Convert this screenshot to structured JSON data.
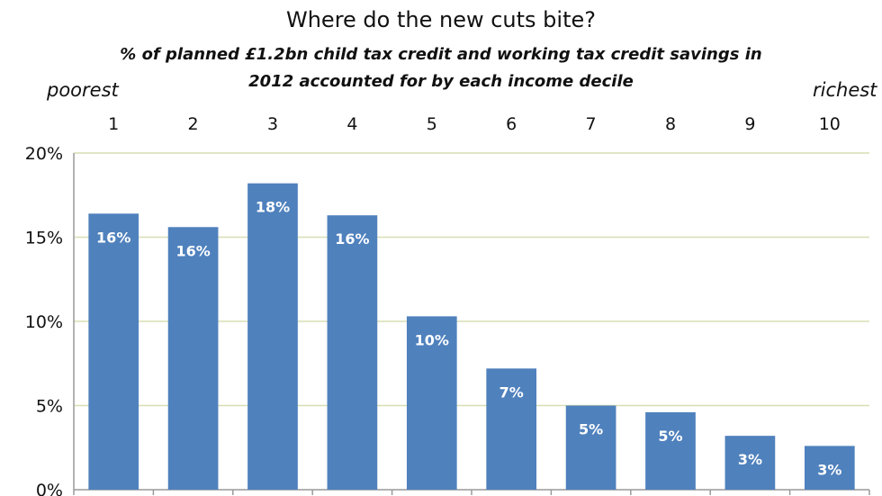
{
  "chart_data": {
    "type": "bar",
    "title": "Where do the new cuts bite?",
    "subtitle_line1": "% of planned £1.2bn child tax credit and working tax credit savings in",
    "subtitle_line2": "2012 accounted for by each income decile",
    "left_end_label": "poorest",
    "right_end_label": "richest",
    "categories": [
      "1",
      "2",
      "3",
      "4",
      "5",
      "6",
      "7",
      "8",
      "9",
      "10"
    ],
    "values": [
      16.4,
      15.6,
      18.2,
      16.3,
      10.3,
      7.2,
      5.0,
      4.6,
      3.2,
      2.6
    ],
    "data_labels": [
      "16%",
      "16%",
      "18%",
      "16%",
      "10%",
      "7%",
      "5%",
      "5%",
      "3%",
      "3%"
    ],
    "ylim": [
      0,
      20
    ],
    "yticks": [
      0,
      5,
      10,
      15,
      20
    ],
    "ytick_labels": [
      "0%",
      "5%",
      "10%",
      "15%",
      "20%"
    ],
    "category_axis_position": "top",
    "grid": true,
    "colors": {
      "bar": "#4f81bd",
      "grid": "#d7dfb4",
      "axis": "#9a9a9a",
      "label": "#ffffff"
    }
  }
}
